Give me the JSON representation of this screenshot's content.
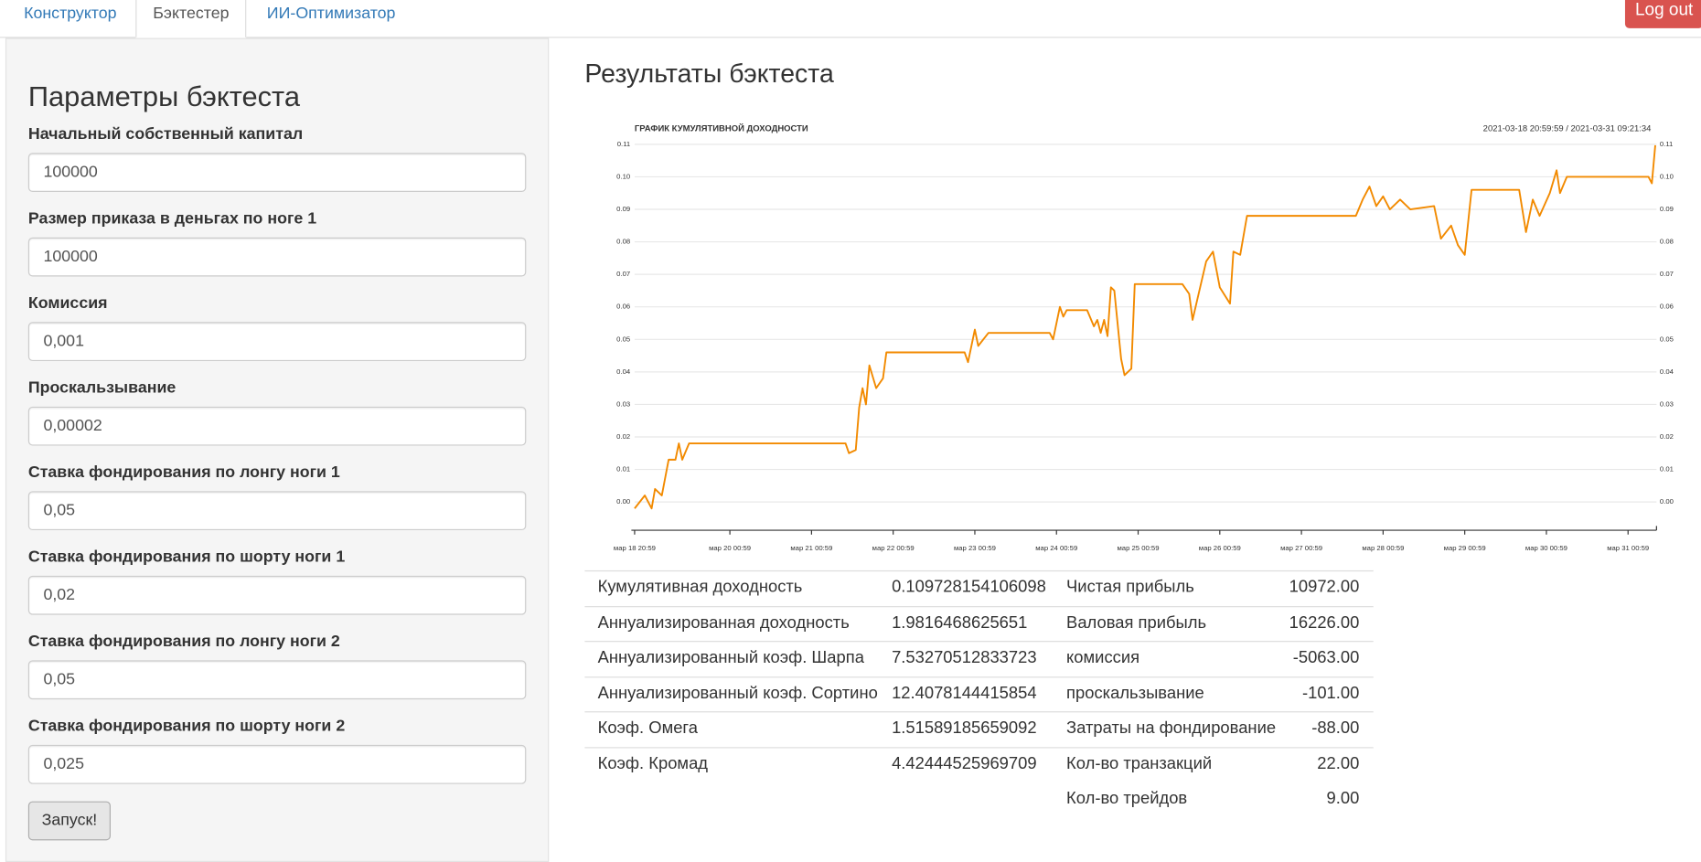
{
  "nav": {
    "tabs": [
      "Конструктор",
      "Бэктестер",
      "ИИ-Оптимизатор"
    ],
    "logout": "Log out"
  },
  "params": {
    "title": "Параметры бэктеста",
    "fields": [
      {
        "label": "Начальный собственный капитал",
        "value": "100000"
      },
      {
        "label": "Размер приказа в деньгах по ноге 1",
        "value": "100000"
      },
      {
        "label": "Комиссия",
        "value": "0,001"
      },
      {
        "label": "Проскальзывание",
        "value": "0,00002"
      },
      {
        "label": "Ставка фондирования по лонгу ноги 1",
        "value": "0,05"
      },
      {
        "label": "Ставка фондирования по шорту ноги 1",
        "value": "0,02"
      },
      {
        "label": "Ставка фондирования по лонгу ноги 2",
        "value": "0,05"
      },
      {
        "label": "Ставка фондирования по шорту ноги 2",
        "value": "0,025"
      }
    ],
    "run": "Запуск!"
  },
  "results": {
    "title": "Результаты бэктеста",
    "metrics_left": [
      {
        "name": "Кумулятивная доходность",
        "value": "0.109728154106098"
      },
      {
        "name": "Аннуализированная доходность",
        "value": "1.9816468625651"
      },
      {
        "name": "Аннуализированный коэф. Шарпа",
        "value": "7.53270512833723"
      },
      {
        "name": "Аннуализированный коэф. Сортино",
        "value": "12.4078144415854"
      },
      {
        "name": "Коэф. Омега",
        "value": "1.51589185659092"
      },
      {
        "name": "Коэф. Кромад",
        "value": "4.42444525969709"
      }
    ],
    "metrics_right": [
      {
        "name": "Чистая прибыль",
        "value": "10972.00"
      },
      {
        "name": "Валовая прибыль",
        "value": "16226.00"
      },
      {
        "name": "комиссия",
        "value": "-5063.00"
      },
      {
        "name": "проскальзывание",
        "value": "-101.00"
      },
      {
        "name": "Затраты на фондирование",
        "value": "-88.00"
      },
      {
        "name": "Кол-во транзакций",
        "value": "22.00"
      },
      {
        "name": "Кол-во трейдов",
        "value": "9.00"
      }
    ]
  },
  "chart_data": {
    "type": "line",
    "title": "ГРАФИК КУМУЛЯТИВНОЙ ДОХОДНОСТИ",
    "range_label": "2021-03-18 20:59:59 / 2021-03-31 09:21:34",
    "x": [
      "2021-03-18 20:59",
      "2021-03-18 23:59",
      "2021-03-19 01:59",
      "2021-03-19 02:59",
      "2021-03-19 04:59",
      "2021-03-19 06:59",
      "2021-03-19 08:59",
      "2021-03-19 09:59",
      "2021-03-19 10:59",
      "2021-03-19 12:59",
      "2021-03-21 10:59",
      "2021-03-21 11:59",
      "2021-03-21 13:59",
      "2021-03-21 14:59",
      "2021-03-21 15:59",
      "2021-03-21 16:59",
      "2021-03-21 17:59",
      "2021-03-21 19:59",
      "2021-03-21 21:59",
      "2021-03-21 22:59",
      "2021-03-22 21:59",
      "2021-03-22 22:59",
      "2021-03-23 00:59",
      "2021-03-23 01:59",
      "2021-03-23 04:59",
      "2021-03-23 22:59",
      "2021-03-23 23:59",
      "2021-03-24 01:59",
      "2021-03-24 02:59",
      "2021-03-24 03:59",
      "2021-03-24 09:59",
      "2021-03-24 11:59",
      "2021-03-24 12:59",
      "2021-03-24 13:59",
      "2021-03-24 14:59",
      "2021-03-24 15:59",
      "2021-03-24 16:59",
      "2021-03-24 17:59",
      "2021-03-24 19:59",
      "2021-03-24 20:59",
      "2021-03-24 22:59",
      "2021-03-24 23:59",
      "2021-03-25 13:59",
      "2021-03-25 15:59",
      "2021-03-25 16:59",
      "2021-03-25 18:59",
      "2021-03-25 20:59",
      "2021-03-25 22:59",
      "2021-03-26 00:59",
      "2021-03-26 03:59",
      "2021-03-26 04:59",
      "2021-03-26 06:59",
      "2021-03-26 08:59",
      "2021-03-27 16:59",
      "2021-03-27 18:59",
      "2021-03-27 20:59",
      "2021-03-27 22:59",
      "2021-03-28 00:59",
      "2021-03-28 02:59",
      "2021-03-28 05:59",
      "2021-03-28 08:59",
      "2021-03-28 15:59",
      "2021-03-28 17:59",
      "2021-03-28 20:59",
      "2021-03-28 22:59",
      "2021-03-29 00:59",
      "2021-03-29 02:59",
      "2021-03-29 16:59",
      "2021-03-29 18:59",
      "2021-03-29 20:59",
      "2021-03-29 22:59",
      "2021-03-30 01:59",
      "2021-03-30 03:59",
      "2021-03-30 04:59",
      "2021-03-30 06:59",
      "2021-03-31 06:59",
      "2021-03-31 07:59",
      "2021-03-31 08:59"
    ],
    "series": [
      {
        "color": "#f28a00",
        "values": [
          -0.002,
          0.002,
          -0.002,
          0.004,
          0.002,
          0.013,
          0.013,
          0.018,
          0.013,
          0.018,
          0.018,
          0.015,
          0.016,
          0.029,
          0.035,
          0.03,
          0.042,
          0.035,
          0.038,
          0.046,
          0.046,
          0.043,
          0.053,
          0.048,
          0.052,
          0.052,
          0.05,
          0.06,
          0.057,
          0.059,
          0.059,
          0.054,
          0.056,
          0.052,
          0.056,
          0.051,
          0.066,
          0.065,
          0.044,
          0.039,
          0.041,
          0.067,
          0.067,
          0.064,
          0.056,
          0.065,
          0.074,
          0.077,
          0.066,
          0.061,
          0.077,
          0.076,
          0.088,
          0.088,
          0.093,
          0.097,
          0.091,
          0.094,
          0.09,
          0.093,
          0.09,
          0.091,
          0.081,
          0.085,
          0.079,
          0.076,
          0.096,
          0.096,
          0.083,
          0.093,
          0.088,
          0.095,
          0.102,
          0.095,
          0.1,
          0.1,
          0.098,
          0.1097
        ]
      }
    ],
    "xlim": [
      "2021-03-18 20:59",
      "2021-03-31 09:21"
    ],
    "xticks": [
      {
        "value": "2021-03-18 20:59",
        "label": "мар 18 20:59"
      },
      {
        "value": "2021-03-20 00:59",
        "label": "мар 20 00:59"
      },
      {
        "value": "2021-03-21 00:59",
        "label": "мар 21 00:59"
      },
      {
        "value": "2021-03-22 00:59",
        "label": "мар 22 00:59"
      },
      {
        "value": "2021-03-23 00:59",
        "label": "мар 23 00:59"
      },
      {
        "value": "2021-03-24 00:59",
        "label": "мар 24 00:59"
      },
      {
        "value": "2021-03-25 00:59",
        "label": "мар 25 00:59"
      },
      {
        "value": "2021-03-26 00:59",
        "label": "мар 26 00:59"
      },
      {
        "value": "2021-03-27 00:59",
        "label": "мар 27 00:59"
      },
      {
        "value": "2021-03-28 00:59",
        "label": "мар 28 00:59"
      },
      {
        "value": "2021-03-29 00:59",
        "label": "мар 29 00:59"
      },
      {
        "value": "2021-03-30 00:59",
        "label": "мар 30 00:59"
      },
      {
        "value": "2021-03-31 00:59",
        "label": "мар 31 00:59"
      }
    ],
    "ylim": [
      -0.0087,
      0.1117
    ],
    "yticks": [
      {
        "value": 0,
        "label": "0.00"
      },
      {
        "value": 0.01,
        "label": "0.01"
      },
      {
        "value": 0.02,
        "label": "0.02"
      },
      {
        "value": 0.03,
        "label": "0.03"
      },
      {
        "value": 0.04,
        "label": "0.04"
      },
      {
        "value": 0.05,
        "label": "0.05"
      },
      {
        "value": 0.06,
        "label": "0.06"
      },
      {
        "value": 0.07,
        "label": "0.07"
      },
      {
        "value": 0.08,
        "label": "0.08"
      },
      {
        "value": 0.09,
        "label": "0.09"
      },
      {
        "value": 0.1,
        "label": "0.10"
      },
      {
        "value": 0.11,
        "label": "0.11"
      }
    ],
    "grid": true
  }
}
